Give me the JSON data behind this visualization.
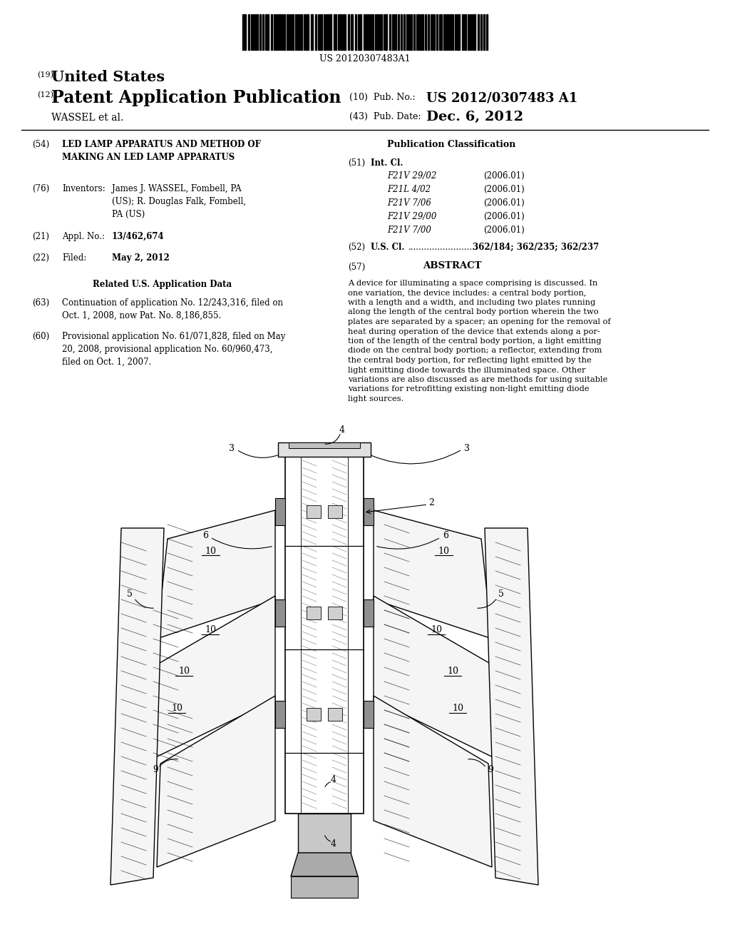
{
  "background_color": "#ffffff",
  "barcode_text": "US 20120307483A1",
  "title_19": "(19)",
  "title_19_text": "United States",
  "title_12": "(12)",
  "title_12_text": "Patent Application Publication",
  "pub_no_label": "(10)  Pub. No.:",
  "pub_no_value": "US 2012/0307483 A1",
  "authors": "WASSEL et al.",
  "pub_date_label": "(43)  Pub. Date:",
  "pub_date_value": "Dec. 6, 2012",
  "section_54_num": "(54)",
  "section_54_title": "LED LAMP APPARATUS AND METHOD OF\nMAKING AN LED LAMP APPARATUS",
  "section_76_num": "(76)",
  "section_76_label": "Inventors:",
  "section_76_text": "James J. WASSEL, Fombell, PA\n(US); R. Douglas Falk, Fombell,\nPA (US)",
  "section_21_num": "(21)",
  "section_21_label": "Appl. No.:",
  "section_21_text": "13/462,674",
  "section_22_num": "(22)",
  "section_22_label": "Filed:",
  "section_22_text": "May 2, 2012",
  "related_title": "Related U.S. Application Data",
  "section_63_num": "(63)",
  "section_63_text": "Continuation of application No. 12/243,316, filed on\nOct. 1, 2008, now Pat. No. 8,186,855.",
  "section_60_num": "(60)",
  "section_60_text": "Provisional application No. 61/071,828, filed on May\n20, 2008, provisional application No. 60/960,473,\nfiled on Oct. 1, 2007.",
  "pub_class_title": "Publication Classification",
  "section_51_num": "(51)",
  "section_51_label": "Int. Cl.",
  "int_cl_entries": [
    [
      "F21V 29/02",
      "(2006.01)"
    ],
    [
      "F21L 4/02",
      "(2006.01)"
    ],
    [
      "F21V 7/06",
      "(2006.01)"
    ],
    [
      "F21V 29/00",
      "(2006.01)"
    ],
    [
      "F21V 7/00",
      "(2006.01)"
    ]
  ],
  "section_52_num": "(52)",
  "section_52_label": "U.S. Cl.",
  "section_52_text": "362/184; 362/235; 362/237",
  "section_57_num": "(57)",
  "section_57_label": "ABSTRACT",
  "abstract_text": "A device for illuminating a space comprising is discussed. In one variation, the device includes: a central body portion, with a length and a width, and including two plates running along the length of the central body portion wherein the two plates are separated by a spacer; an opening for the removal of heat during operation of the device that extends along a por-tion of the length of the central body portion, a light emitting diode on the central body portion; a reflector, extending from the central body portion, for reflecting light emitted by the light emitting diode towards the illuminated space. Other variations are also discussed as are methods for using suitable variations for retrofitting existing non-light emitting diode light sources."
}
